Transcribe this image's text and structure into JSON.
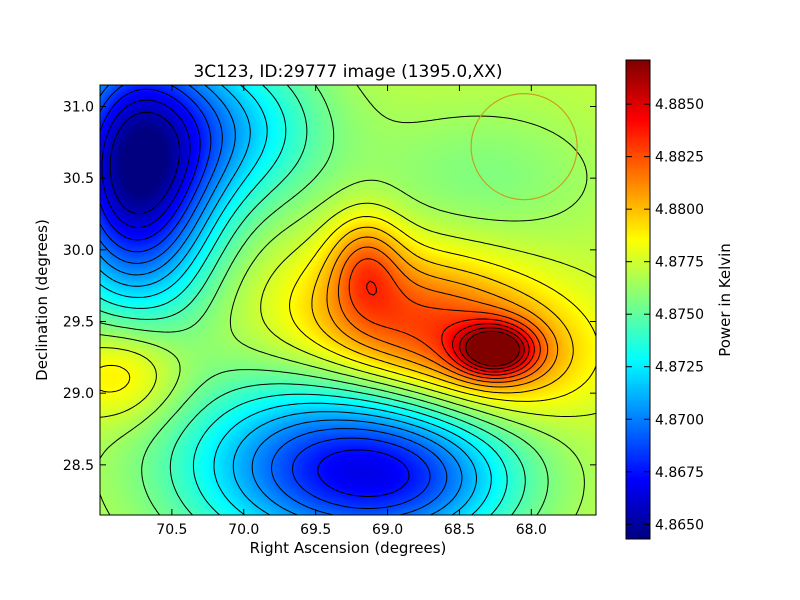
{
  "chart_data": {
    "type": "heatmap",
    "title": "3C123, ID:29777 image (1395.0,XX)",
    "xlabel": "Right Ascension (degrees)",
    "ylabel": "Declination (degrees)",
    "x_ticks": [
      "70.5",
      "70.0",
      "69.5",
      "69.0",
      "68.5",
      "68.0"
    ],
    "x_tick_values": [
      70.5,
      70.0,
      69.5,
      69.0,
      68.5,
      68.0
    ],
    "y_ticks": [
      "28.5",
      "29.0",
      "29.5",
      "30.0",
      "30.5",
      "31.0"
    ],
    "y_tick_values": [
      28.5,
      29.0,
      29.5,
      30.0,
      30.5,
      31.0
    ],
    "xlim": [
      71.0,
      67.55
    ],
    "ylim": [
      28.15,
      31.15
    ],
    "x_inverted": true,
    "colorbar": {
      "label": "Power in Kelvin",
      "ticks": [
        "4.8650",
        "4.8675",
        "4.8700",
        "4.8725",
        "4.8750",
        "4.8775",
        "4.8800",
        "4.8825",
        "4.8850"
      ],
      "tick_values": [
        4.865,
        4.8675,
        4.87,
        4.8725,
        4.875,
        4.8775,
        4.88,
        4.8825,
        4.885
      ],
      "range": [
        4.8643,
        4.8871
      ],
      "colormap": "jet"
    },
    "field": {
      "base": 4.8772,
      "components": [
        {
          "ra": 70.75,
          "dec": 30.55,
          "amp": -0.0125,
          "s_ra": 0.38,
          "s_dec": 0.65
        },
        {
          "ra": 70.05,
          "dec": 30.85,
          "amp": -0.0045,
          "s_ra": 0.45,
          "s_dec": 0.4
        },
        {
          "ra": 69.5,
          "dec": 28.5,
          "amp": -0.0075,
          "s_ra": 0.7,
          "s_dec": 0.45
        },
        {
          "ra": 68.8,
          "dec": 28.4,
          "amp": -0.005,
          "s_ra": 0.55,
          "s_dec": 0.35
        },
        {
          "ra": 68.9,
          "dec": 29.5,
          "amp": 0.005,
          "s_ra": 0.55,
          "s_dec": 0.35
        },
        {
          "ra": 69.15,
          "dec": 29.9,
          "amp": 0.0035,
          "s_ra": 0.18,
          "s_dec": 0.25
        },
        {
          "ra": 68.25,
          "dec": 29.3,
          "amp": 0.0075,
          "s_ra": 0.18,
          "s_dec": 0.12
        },
        {
          "ra": 68.2,
          "dec": 29.25,
          "amp": 0.0035,
          "s_ra": 0.45,
          "s_dec": 0.3
        },
        {
          "ra": 70.85,
          "dec": 29.15,
          "amp": 0.003,
          "s_ra": 0.3,
          "s_dec": 0.25
        },
        {
          "ra": 68.35,
          "dec": 30.5,
          "amp": -0.0015,
          "s_ra": 0.6,
          "s_dec": 0.35
        }
      ]
    },
    "contour_levels": [
      4.8655,
      4.8665,
      4.8675,
      4.8685,
      4.8695,
      4.8705,
      4.8715,
      4.8725,
      4.8735,
      4.8745,
      4.8755,
      4.8765,
      4.8775,
      4.8785,
      4.8795,
      4.8805,
      4.8815,
      4.8825,
      4.8835,
      4.8845,
      4.8855,
      4.8865
    ],
    "beam_circle": {
      "ra": 68.05,
      "dec": 30.72,
      "radius_deg": 0.37,
      "color": "#c8a020"
    }
  }
}
